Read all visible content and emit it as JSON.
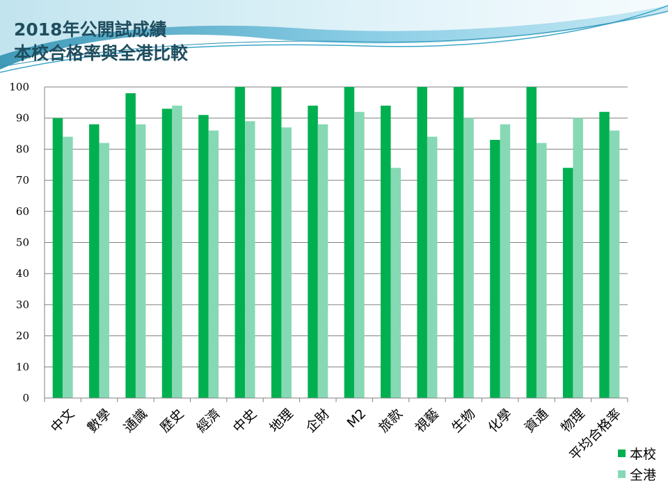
{
  "header": {
    "title_line1": "2018年公開試成績",
    "title_line2": "本校合格率與全港比較"
  },
  "colors": {
    "series_school": "#00b050",
    "series_hk": "#86d9b4",
    "title": "#1f4e5f",
    "gridline": "#7f7f7f"
  },
  "chart_data": {
    "type": "bar",
    "categories": [
      "中文",
      "數學",
      "通識",
      "歷史",
      "經濟",
      "中史",
      "地理",
      "企財",
      "M2",
      "旅款",
      "視藝",
      "生物",
      "化學",
      "資通",
      "物理",
      "平均合格率"
    ],
    "series": [
      {
        "name": "本校",
        "values": [
          90,
          88,
          98,
          93,
          91,
          100,
          100,
          94,
          100,
          94,
          100,
          100,
          83,
          100,
          74,
          92
        ]
      },
      {
        "name": "全港",
        "values": [
          84,
          82,
          88,
          94,
          86,
          89,
          87,
          88,
          92,
          74,
          84,
          90,
          88,
          82,
          90,
          86
        ]
      }
    ],
    "ylim": [
      0,
      100
    ],
    "yticks": [
      0,
      10,
      20,
      30,
      40,
      50,
      60,
      70,
      80,
      90,
      100
    ],
    "grid": true,
    "legend_position": "bottom-right"
  }
}
